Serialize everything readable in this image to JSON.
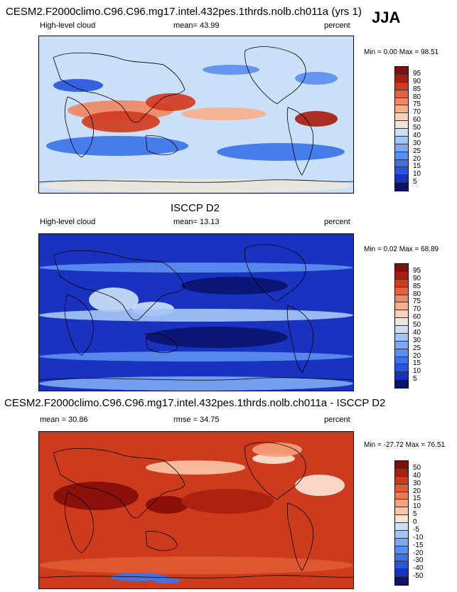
{
  "title_main": "CESM2.F2000climo.C96.C96.mg17.intel.432pes.1thrds.nolb.ch011a (yrs 1)",
  "season": "JJA",
  "title_obs": "ISCCP D2",
  "title_diff": "CESM2.F2000climo.C96.C96.mg17.intel.432pes.1thrds.nolb.ch011a - ISCCP D2",
  "palette_abs": [
    "#0a1470",
    "#1932c0",
    "#2855dc",
    "#3c74e8",
    "#5a8ef0",
    "#7ba8f2",
    "#a3c4f5",
    "#cadff8",
    "#ece6dc",
    "#fbd2b8",
    "#f7b08c",
    "#ef8864",
    "#e5623c",
    "#d03c1e",
    "#a81e10",
    "#80100c"
  ],
  "palette_diff": [
    "#0a1470",
    "#1932c0",
    "#2855dc",
    "#3c74e8",
    "#5a8ef0",
    "#7ba8f2",
    "#a3c4f5",
    "#cadff8",
    "#fbe4d4",
    "#fbc6a6",
    "#f5a07a",
    "#ec7a52",
    "#e05a32",
    "#cc3c1c",
    "#aa2010",
    "#860c0a"
  ],
  "chart_data": [
    {
      "type": "heatmap",
      "panel": "model",
      "left_label": "High-level cloud",
      "mean_text": "mean=  43.99",
      "units": "percent",
      "minmax_text": "Min =   0.00 Max =  98.51",
      "min": 0.0,
      "max": 98.51,
      "mean": 43.99,
      "colorbar_levels": [
        "95",
        "90",
        "85",
        "80",
        "75",
        "70",
        "60",
        "50",
        "40",
        "30",
        "25",
        "20",
        "15",
        "10",
        "5"
      ],
      "regions": [
        {
          "name": "background",
          "value": 40
        },
        {
          "name": "n-pacific-tropic-band",
          "value": 75
        },
        {
          "name": "indian-ocean-warm",
          "value": 88
        },
        {
          "name": "central-america-convection",
          "value": 90
        },
        {
          "name": "south-subtropics-dry",
          "value": 15
        },
        {
          "name": "north-atlantic-dry",
          "value": 20
        },
        {
          "name": "southern-ocean",
          "value": 45
        },
        {
          "name": "antarctica-edge",
          "value": 55
        },
        {
          "name": "sahara-dry",
          "value": 10
        },
        {
          "name": "tropical-pacific-east",
          "value": 70
        }
      ]
    },
    {
      "type": "heatmap",
      "panel": "observation",
      "left_label": "High-level cloud",
      "mean_text": "mean=  13.13",
      "units": "percent",
      "minmax_text": "Min =   0.02 Max =  68.89",
      "min": 0.02,
      "max": 68.89,
      "mean": 13.13,
      "colorbar_levels": [
        "95",
        "90",
        "85",
        "80",
        "75",
        "70",
        "60",
        "50",
        "40",
        "30",
        "25",
        "20",
        "15",
        "10",
        "5"
      ],
      "regions": [
        {
          "name": "background",
          "value": 8
        },
        {
          "name": "maritime-continent",
          "value": 45
        },
        {
          "name": "tropical-band",
          "value": 30
        },
        {
          "name": "storm-tracks",
          "value": 20
        },
        {
          "name": "subtropics",
          "value": 4
        },
        {
          "name": "antarctica-edge",
          "value": 28
        }
      ]
    },
    {
      "type": "heatmap",
      "panel": "difference",
      "left_label": "mean =  30.86",
      "mean_text": "rmse =  34.75",
      "units": "percent",
      "minmax_text": "Min = -27.72 Max =  76.51",
      "min": -27.72,
      "max": 76.51,
      "mean": 30.86,
      "rmse": 34.75,
      "colorbar_levels": [
        "50",
        "40",
        "30",
        "20",
        "15",
        "10",
        "5",
        "0",
        "-5",
        "-10",
        "-15",
        "-20",
        "-30",
        "-40",
        "-50"
      ],
      "regions": [
        {
          "name": "background",
          "value": 32
        },
        {
          "name": "tropical-indian-ocean",
          "value": 55
        },
        {
          "name": "central-pacific",
          "value": 45
        },
        {
          "name": "north-pacific-neutral",
          "value": 5
        },
        {
          "name": "north-atlantic-neutral",
          "value": 0
        },
        {
          "name": "southern-ocean",
          "value": 20
        },
        {
          "name": "antarctica-negative",
          "value": -25
        },
        {
          "name": "north-america",
          "value": 10
        }
      ]
    }
  ]
}
